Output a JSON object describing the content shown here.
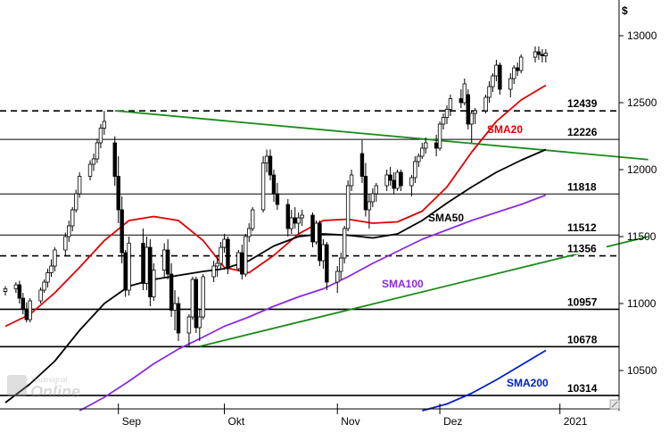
{
  "watermark": {
    "brand": "Tradesignal",
    "product": "Online"
  },
  "chart_data": {
    "type": "candlestick",
    "currency_label": "$",
    "ylim": [
      10200,
      13100
    ],
    "y_ticks": [
      13000,
      12500,
      12000,
      11500,
      11000,
      10500
    ],
    "x_months": [
      {
        "label": "Sep",
        "date": "2020-09-01"
      },
      {
        "label": "Okt",
        "date": "2020-10-01"
      },
      {
        "label": "Nov",
        "date": "2020-11-02"
      },
      {
        "label": "Dez",
        "date": "2020-12-01"
      },
      {
        "label": "2021",
        "date": "2021-01-04"
      }
    ],
    "horizontal_levels": [
      {
        "value": 12439,
        "style": "dashed",
        "color": "#000000"
      },
      {
        "value": 12226,
        "style": "solid",
        "color": "#000000"
      },
      {
        "value": 11818,
        "style": "solid",
        "color": "#000000"
      },
      {
        "value": 11512,
        "style": "solid",
        "color": "#000000"
      },
      {
        "value": 11356,
        "style": "dashed",
        "color": "#000000"
      },
      {
        "value": 10957,
        "style": "solid-thick",
        "color": "#000000"
      },
      {
        "value": 10678,
        "style": "solid-thick",
        "color": "#000000"
      },
      {
        "value": 10314,
        "style": "solid-thick",
        "color": "#000000"
      }
    ],
    "trendlines": [
      {
        "color": "#1a8a1a",
        "points": [
          [
            "2020-08-31",
            12440
          ],
          [
            "2021-01-29",
            12075
          ]
        ]
      },
      {
        "color": "#1a8a1a",
        "points": [
          [
            "2020-09-24",
            10680
          ],
          [
            "2021-01-29",
            11500
          ]
        ]
      }
    ],
    "series": [
      {
        "name": "SMA20",
        "color": "#e00000",
        "points": [
          [
            "2020-07-31",
            10830
          ],
          [
            "2020-08-07",
            10920
          ],
          [
            "2020-08-14",
            11080
          ],
          [
            "2020-08-21",
            11270
          ],
          [
            "2020-08-28",
            11470
          ],
          [
            "2020-09-04",
            11620
          ],
          [
            "2020-09-11",
            11650
          ],
          [
            "2020-09-18",
            11620
          ],
          [
            "2020-09-25",
            11470
          ],
          [
            "2020-10-01",
            11270
          ],
          [
            "2020-10-08",
            11230
          ],
          [
            "2020-10-15",
            11360
          ],
          [
            "2020-10-22",
            11520
          ],
          [
            "2020-10-29",
            11620
          ],
          [
            "2020-11-05",
            11630
          ],
          [
            "2020-11-12",
            11600
          ],
          [
            "2020-11-19",
            11610
          ],
          [
            "2020-11-26",
            11690
          ],
          [
            "2020-12-03",
            11870
          ],
          [
            "2020-12-10",
            12130
          ],
          [
            "2020-12-17",
            12360
          ],
          [
            "2020-12-24",
            12520
          ],
          [
            "2020-12-31",
            12630
          ]
        ]
      },
      {
        "name": "SMA50",
        "color": "#000000",
        "points": [
          [
            "2020-07-31",
            10260
          ],
          [
            "2020-08-07",
            10400
          ],
          [
            "2020-08-14",
            10570
          ],
          [
            "2020-08-21",
            10800
          ],
          [
            "2020-08-28",
            11000
          ],
          [
            "2020-09-04",
            11130
          ],
          [
            "2020-09-11",
            11180
          ],
          [
            "2020-09-18",
            11210
          ],
          [
            "2020-09-25",
            11240
          ],
          [
            "2020-10-01",
            11260
          ],
          [
            "2020-10-08",
            11320
          ],
          [
            "2020-10-15",
            11430
          ],
          [
            "2020-10-22",
            11500
          ],
          [
            "2020-10-29",
            11520
          ],
          [
            "2020-11-05",
            11510
          ],
          [
            "2020-11-12",
            11490
          ],
          [
            "2020-11-19",
            11520
          ],
          [
            "2020-11-26",
            11620
          ],
          [
            "2020-12-03",
            11750
          ],
          [
            "2020-12-10",
            11870
          ],
          [
            "2020-12-17",
            11980
          ],
          [
            "2020-12-24",
            12070
          ],
          [
            "2020-12-31",
            12150
          ]
        ]
      },
      {
        "name": "SMA100",
        "color": "#8a2be2",
        "points": [
          [
            "2020-08-21",
            10200
          ],
          [
            "2020-08-28",
            10300
          ],
          [
            "2020-09-04",
            10420
          ],
          [
            "2020-09-11",
            10550
          ],
          [
            "2020-09-18",
            10660
          ],
          [
            "2020-09-25",
            10750
          ],
          [
            "2020-10-01",
            10830
          ],
          [
            "2020-10-08",
            10900
          ],
          [
            "2020-10-15",
            10980
          ],
          [
            "2020-10-22",
            11050
          ],
          [
            "2020-10-29",
            11110
          ],
          [
            "2020-11-05",
            11200
          ],
          [
            "2020-11-12",
            11300
          ],
          [
            "2020-11-19",
            11390
          ],
          [
            "2020-11-26",
            11480
          ],
          [
            "2020-12-03",
            11550
          ],
          [
            "2020-12-10",
            11620
          ],
          [
            "2020-12-17",
            11680
          ],
          [
            "2020-12-24",
            11740
          ],
          [
            "2020-12-31",
            11810
          ]
        ]
      },
      {
        "name": "SMA200",
        "color": "#0020d0",
        "points": [
          [
            "2020-11-26",
            10200
          ],
          [
            "2020-12-03",
            10250
          ],
          [
            "2020-12-10",
            10330
          ],
          [
            "2020-12-17",
            10430
          ],
          [
            "2020-12-24",
            10540
          ],
          [
            "2020-12-31",
            10650
          ]
        ]
      }
    ],
    "candles": [
      [
        "2020-07-31",
        11090,
        11130,
        11060,
        11110
      ],
      [
        "2020-08-03",
        11110,
        11160,
        11080,
        11140
      ],
      [
        "2020-08-04",
        11140,
        11170,
        11000,
        11040
      ],
      [
        "2020-08-05",
        11040,
        11080,
        10920,
        10960
      ],
      [
        "2020-08-06",
        10960,
        11010,
        10860,
        10880
      ],
      [
        "2020-08-07",
        10880,
        11040,
        10860,
        11020
      ],
      [
        "2020-08-10",
        11020,
        11120,
        11000,
        11100
      ],
      [
        "2020-08-11",
        11100,
        11180,
        11080,
        11160
      ],
      [
        "2020-08-12",
        11160,
        11260,
        11120,
        11230
      ],
      [
        "2020-08-13",
        11230,
        11330,
        11200,
        11280
      ],
      [
        "2020-08-14",
        11280,
        11420,
        11240,
        11400
      ],
      [
        "2020-08-17",
        11400,
        11530,
        11360,
        11500
      ],
      [
        "2020-08-18",
        11500,
        11620,
        11460,
        11580
      ],
      [
        "2020-08-19",
        11580,
        11720,
        11540,
        11700
      ],
      [
        "2020-08-20",
        11700,
        11850,
        11680,
        11820
      ],
      [
        "2020-08-21",
        11820,
        11980,
        11790,
        11950
      ],
      [
        "2020-08-24",
        11950,
        12070,
        11920,
        12040
      ],
      [
        "2020-08-25",
        12040,
        12120,
        11990,
        12080
      ],
      [
        "2020-08-26",
        12080,
        12230,
        12050,
        12200
      ],
      [
        "2020-08-27",
        12200,
        12340,
        12160,
        12310
      ],
      [
        "2020-08-28",
        12310,
        12439,
        12260,
        12360
      ],
      [
        "2020-08-31",
        12200,
        12250,
        11880,
        11950
      ],
      [
        "2020-09-01",
        11950,
        12100,
        11600,
        11700
      ],
      [
        "2020-09-02",
        11700,
        11800,
        11300,
        11380
      ],
      [
        "2020-09-03",
        11380,
        11400,
        11050,
        11100
      ],
      [
        "2020-09-04",
        11100,
        11500,
        11060,
        11450
      ],
      [
        "2020-09-08",
        11450,
        11560,
        11100,
        11150
      ],
      [
        "2020-09-09",
        11150,
        11500,
        11100,
        11420
      ],
      [
        "2020-09-10",
        11420,
        11480,
        10980,
        11050
      ],
      [
        "2020-09-11",
        11050,
        11300,
        11020,
        11250
      ],
      [
        "2020-09-14",
        11250,
        11450,
        11200,
        11400
      ],
      [
        "2020-09-15",
        11400,
        11480,
        11180,
        11220
      ],
      [
        "2020-09-16",
        11220,
        11300,
        10900,
        10950
      ],
      [
        "2020-09-17",
        10950,
        11100,
        10800,
        11000
      ],
      [
        "2020-09-18",
        11000,
        11050,
        10720,
        10780
      ],
      [
        "2020-09-21",
        10780,
        10920,
        10678,
        10900
      ],
      [
        "2020-09-22",
        10900,
        11200,
        10880,
        11180
      ],
      [
        "2020-09-23",
        11180,
        11200,
        10780,
        10820
      ],
      [
        "2020-09-24",
        10820,
        10960,
        10720,
        10900
      ],
      [
        "2020-09-25",
        10900,
        11220,
        10880,
        11200
      ],
      [
        "2020-09-28",
        11200,
        11320,
        11160,
        11280
      ],
      [
        "2020-09-29",
        11280,
        11350,
        11200,
        11300
      ],
      [
        "2020-09-30",
        11300,
        11460,
        11260,
        11420
      ],
      [
        "2020-10-01",
        11420,
        11520,
        11380,
        11480
      ],
      [
        "2020-10-02",
        11480,
        11500,
        11220,
        11260
      ],
      [
        "2020-10-05",
        11260,
        11400,
        11240,
        11380
      ],
      [
        "2020-10-06",
        11380,
        11440,
        11180,
        11220
      ],
      [
        "2020-10-07",
        11220,
        11520,
        11200,
        11500
      ],
      [
        "2020-10-08",
        11500,
        11600,
        11460,
        11560
      ],
      [
        "2020-10-09",
        11560,
        11720,
        11540,
        11700
      ],
      [
        "2020-10-12",
        11700,
        12100,
        11680,
        12050
      ],
      [
        "2020-10-13",
        12050,
        12150,
        11980,
        12100
      ],
      [
        "2020-10-14",
        12100,
        12150,
        11920,
        11960
      ],
      [
        "2020-10-15",
        11960,
        12000,
        11760,
        11820
      ],
      [
        "2020-10-16",
        11820,
        11900,
        11700,
        11740
      ],
      [
        "2020-10-19",
        11740,
        11780,
        11500,
        11560
      ],
      [
        "2020-10-20",
        11560,
        11700,
        11520,
        11640
      ],
      [
        "2020-10-21",
        11640,
        11720,
        11560,
        11600
      ],
      [
        "2020-10-22",
        11600,
        11680,
        11520,
        11640
      ],
      [
        "2020-10-23",
        11640,
        11700,
        11580,
        11660
      ],
      [
        "2020-10-26",
        11660,
        11680,
        11420,
        11460
      ],
      [
        "2020-10-27",
        11460,
        11620,
        11440,
        11600
      ],
      [
        "2020-10-28",
        11600,
        11620,
        11280,
        11320
      ],
      [
        "2020-10-29",
        11320,
        11480,
        11260,
        11440
      ],
      [
        "2020-10-30",
        11440,
        11460,
        11100,
        11160
      ],
      [
        "2020-11-02",
        11160,
        11280,
        11080,
        11240
      ],
      [
        "2020-11-03",
        11240,
        11380,
        11180,
        11340
      ],
      [
        "2020-11-04",
        11340,
        11580,
        11300,
        11560
      ],
      [
        "2020-11-05",
        11560,
        11920,
        11540,
        11880
      ],
      [
        "2020-11-06",
        11880,
        12000,
        11840,
        11960
      ],
      [
        "2020-11-09",
        12120,
        12220,
        11900,
        11950
      ],
      [
        "2020-11-10",
        11950,
        12050,
        11650,
        11700
      ],
      [
        "2020-11-11",
        11700,
        11820,
        11560,
        11760
      ],
      [
        "2020-11-12",
        11760,
        11860,
        11720,
        11820
      ],
      [
        "2020-11-13",
        11820,
        11900,
        11760,
        11880
      ],
      [
        "2020-11-16",
        11880,
        12000,
        11840,
        11960
      ],
      [
        "2020-11-17",
        11960,
        12020,
        11880,
        11920
      ],
      [
        "2020-11-18",
        11920,
        11980,
        11820,
        11860
      ],
      [
        "2020-11-19",
        11860,
        12000,
        11840,
        11980
      ],
      [
        "2020-11-20",
        11980,
        12000,
        11840,
        11880
      ],
      [
        "2020-11-23",
        11880,
        11960,
        11800,
        11940
      ],
      [
        "2020-11-24",
        11940,
        12100,
        11900,
        12060
      ],
      [
        "2020-11-25",
        12060,
        12120,
        12020,
        12100
      ],
      [
        "2020-11-26",
        12100,
        12200,
        12080,
        12160
      ],
      [
        "2020-11-27",
        12160,
        12240,
        12120,
        12200
      ],
      [
        "2020-11-30",
        12200,
        12260,
        12100,
        12160
      ],
      [
        "2020-12-01",
        12160,
        12360,
        12140,
        12340
      ],
      [
        "2020-12-02",
        12340,
        12420,
        12300,
        12390
      ],
      [
        "2020-12-03",
        12390,
        12480,
        12340,
        12450
      ],
      [
        "2020-12-04",
        12450,
        12560,
        12400,
        12530
      ],
      [
        "2020-12-07",
        12530,
        12600,
        12460,
        12500
      ],
      [
        "2020-12-08",
        12500,
        12680,
        12480,
        12640
      ],
      [
        "2020-12-09",
        12560,
        12600,
        12300,
        12340
      ],
      [
        "2020-12-10",
        12340,
        12440,
        12200,
        12420
      ],
      [
        "2020-12-11",
        12420,
        12460,
        12340,
        12440
      ],
      [
        "2020-12-14",
        12440,
        12560,
        12420,
        12540
      ],
      [
        "2020-12-15",
        12540,
        12660,
        12500,
        12620
      ],
      [
        "2020-12-16",
        12620,
        12720,
        12580,
        12700
      ],
      [
        "2020-12-17",
        12700,
        12820,
        12660,
        12780
      ],
      [
        "2020-12-18",
        12780,
        12800,
        12560,
        12600
      ],
      [
        "2020-12-21",
        12600,
        12720,
        12540,
        12680
      ],
      [
        "2020-12-22",
        12680,
        12780,
        12640,
        12760
      ],
      [
        "2020-12-23",
        12760,
        12800,
        12700,
        12740
      ],
      [
        "2020-12-24",
        12740,
        12860,
        12720,
        12840
      ],
      [
        "2020-12-28",
        12840,
        12920,
        12800,
        12880
      ],
      [
        "2020-12-29",
        12880,
        12920,
        12820,
        12860
      ],
      [
        "2020-12-30",
        12860,
        12900,
        12800,
        12850
      ],
      [
        "2020-12-31",
        12850,
        12900,
        12800,
        12870
      ]
    ]
  }
}
